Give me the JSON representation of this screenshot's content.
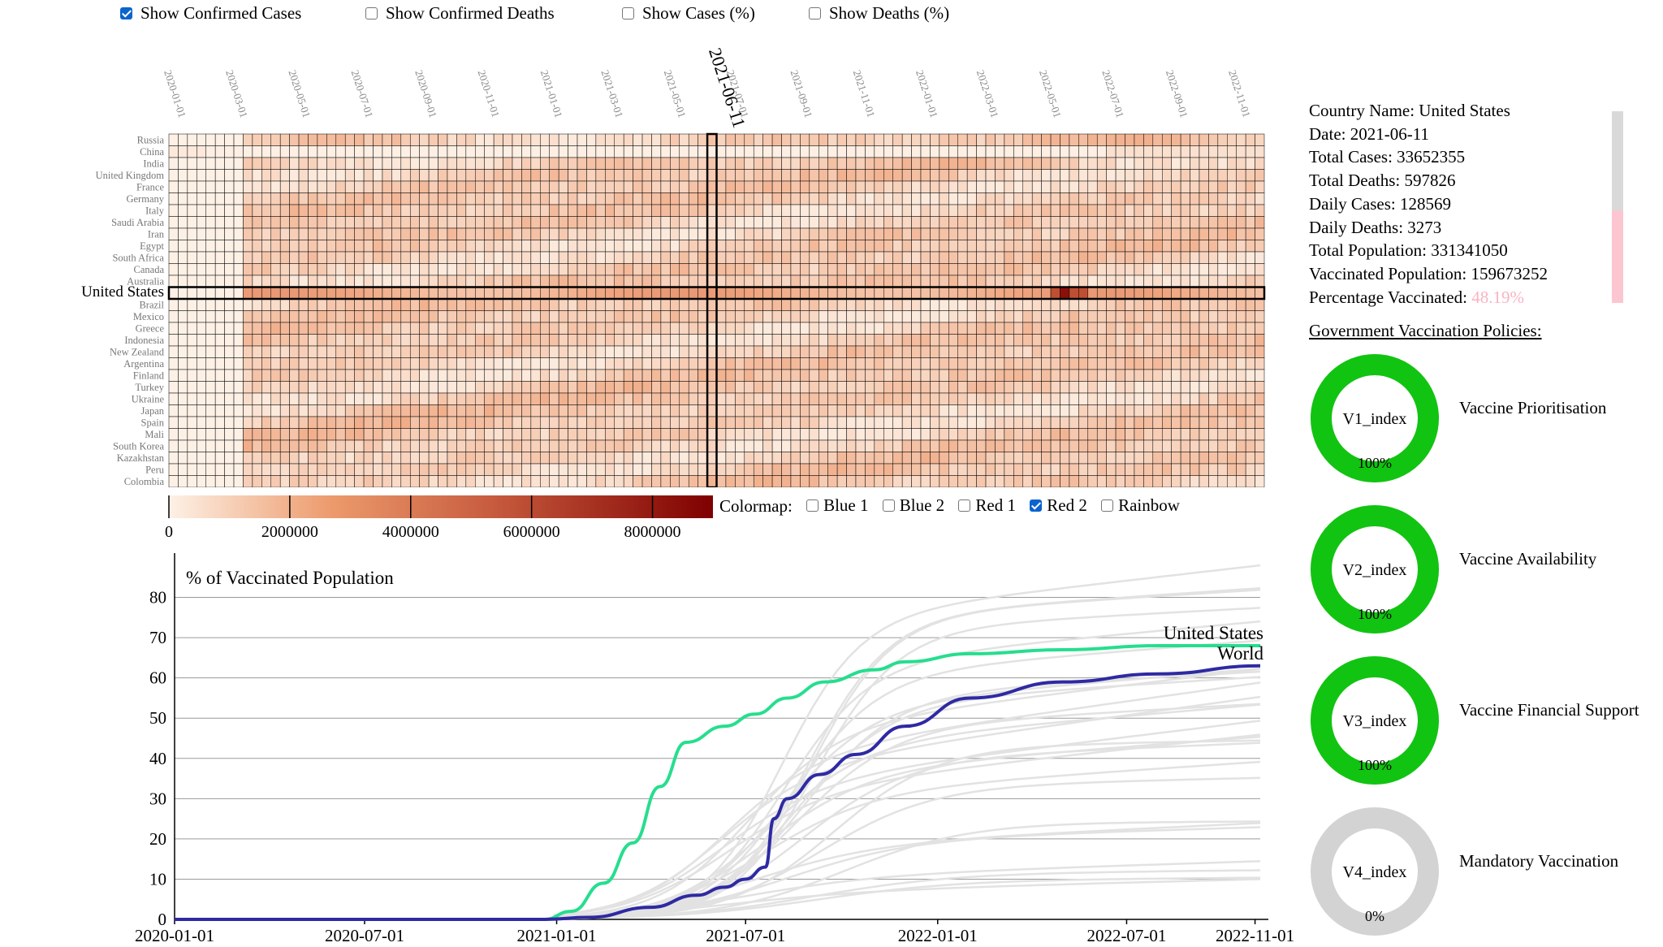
{
  "toggles": [
    {
      "label": "Show Confirmed Cases",
      "checked": true
    },
    {
      "label": "Show Confirmed Deaths",
      "checked": false
    },
    {
      "label": "Show Cases (%)",
      "checked": false
    },
    {
      "label": "Show Deaths (%)",
      "checked": false
    }
  ],
  "heatmap": {
    "date_labels": [
      "2020-01-01",
      "2020-03-01",
      "2020-05-01",
      "2020-07-01",
      "2020-09-01",
      "2020-11-01",
      "2021-01-01",
      "2021-03-01",
      "2021-05-01",
      "2021-07-01",
      "2021-09-01",
      "2021-11-01",
      "2022-01-01",
      "2022-03-01",
      "2022-05-01",
      "2022-07-01",
      "2022-09-01",
      "2022-11-01"
    ],
    "selected_date": "2021-06-11",
    "countries": [
      "Russia",
      "China",
      "India",
      "United Kingdom",
      "France",
      "Germany",
      "Italy",
      "Saudi Arabia",
      "Iran",
      "Egypt",
      "South Africa",
      "Canada",
      "Australia",
      "United States",
      "Brazil",
      "Mexico",
      "Greece",
      "Indonesia",
      "New Zealand",
      "Argentina",
      "Finland",
      "Turkey",
      "Ukraine",
      "Japan",
      "Spain",
      "Mali",
      "South Korea",
      "Kazakhstan",
      "Peru",
      "Colombia"
    ],
    "selected_country": "United States",
    "legend_ticks": [
      "0",
      "2000000",
      "4000000",
      "6000000",
      "8000000"
    ],
    "colors": {
      "low": "#fdf1e6",
      "mid": "#e3895c",
      "high": "#7f0000",
      "border": "#000000"
    }
  },
  "colormap": {
    "label": "Colormap:",
    "options": [
      {
        "label": "Blue 1",
        "checked": false
      },
      {
        "label": "Blue 2",
        "checked": false
      },
      {
        "label": "Red 1",
        "checked": false
      },
      {
        "label": "Red 2",
        "checked": true
      },
      {
        "label": "Rainbow",
        "checked": false
      }
    ]
  },
  "chart_data": {
    "type": "line",
    "title": "% of Vaccinated Population",
    "xlabel": "",
    "ylabel": "",
    "x_ticks": [
      "2020-01-01",
      "2020-07-01",
      "2021-01-01",
      "2021-07-01",
      "2022-01-01",
      "2022-07-01",
      "2022-11-01"
    ],
    "y_ticks": [
      "0",
      "10",
      "20",
      "30",
      "40",
      "50",
      "60",
      "70",
      "80"
    ],
    "ylim": [
      0,
      90
    ],
    "grid": true,
    "series": [
      {
        "name": "United States",
        "color": "#26de8e",
        "x": [
          "2020-01-01",
          "2020-12-20",
          "2021-01-15",
          "2021-02-15",
          "2021-03-15",
          "2021-04-10",
          "2021-05-05",
          "2021-06-11",
          "2021-07-10",
          "2021-08-10",
          "2021-09-15",
          "2021-11-01",
          "2021-12-01",
          "2022-02-01",
          "2022-05-01",
          "2022-08-01",
          "2022-11-06"
        ],
        "y": [
          0,
          0,
          2,
          9,
          19,
          33,
          44,
          48,
          51,
          55,
          59,
          62,
          64,
          66,
          67,
          68,
          68
        ]
      },
      {
        "name": "World",
        "color": "#2e2aa3",
        "x": [
          "2020-01-01",
          "2020-12-20",
          "2021-02-01",
          "2021-04-01",
          "2021-05-15",
          "2021-06-11",
          "2021-07-01",
          "2021-07-20",
          "2021-07-28",
          "2021-08-10",
          "2021-09-10",
          "2021-10-15",
          "2021-12-01",
          "2022-02-01",
          "2022-05-01",
          "2022-08-01",
          "2022-11-06"
        ],
        "y": [
          0,
          0,
          0.5,
          3,
          6,
          8,
          10,
          13,
          25,
          30,
          36,
          41,
          48,
          55,
          59,
          61,
          63
        ]
      }
    ]
  },
  "info": {
    "country": "Country Name: United States",
    "date": "Date: 2021-06-11",
    "total_cases": "Total Cases: 33652355",
    "total_deaths": "Total Deaths: 597826",
    "daily_cases": "Daily Cases: 128569",
    "daily_deaths": "Daily Deaths: 3273",
    "total_population": "Total Population: 331341050",
    "vaccinated_population": "Vaccinated Population: 159673252",
    "pct_label": "Percentage Vaccinated: ",
    "pct_value": "48.19%",
    "pct_fraction": 0.4819
  },
  "policies": {
    "title": "Government Vaccination Policies:",
    "items": [
      {
        "index": "V1_index",
        "name": "Vaccine Prioritisation",
        "value": "100%",
        "fraction": 1.0
      },
      {
        "index": "V2_index",
        "name": "Vaccine Availability",
        "value": "100%",
        "fraction": 1.0
      },
      {
        "index": "V3_index",
        "name": "Vaccine Financial Support",
        "value": "100%",
        "fraction": 1.0
      },
      {
        "index": "V4_index",
        "name": "Mandatory Vaccination",
        "value": "0%",
        "fraction": 0.0
      }
    ],
    "colors": {
      "active": "#11c411",
      "inactive": "#d3d3d3"
    }
  }
}
